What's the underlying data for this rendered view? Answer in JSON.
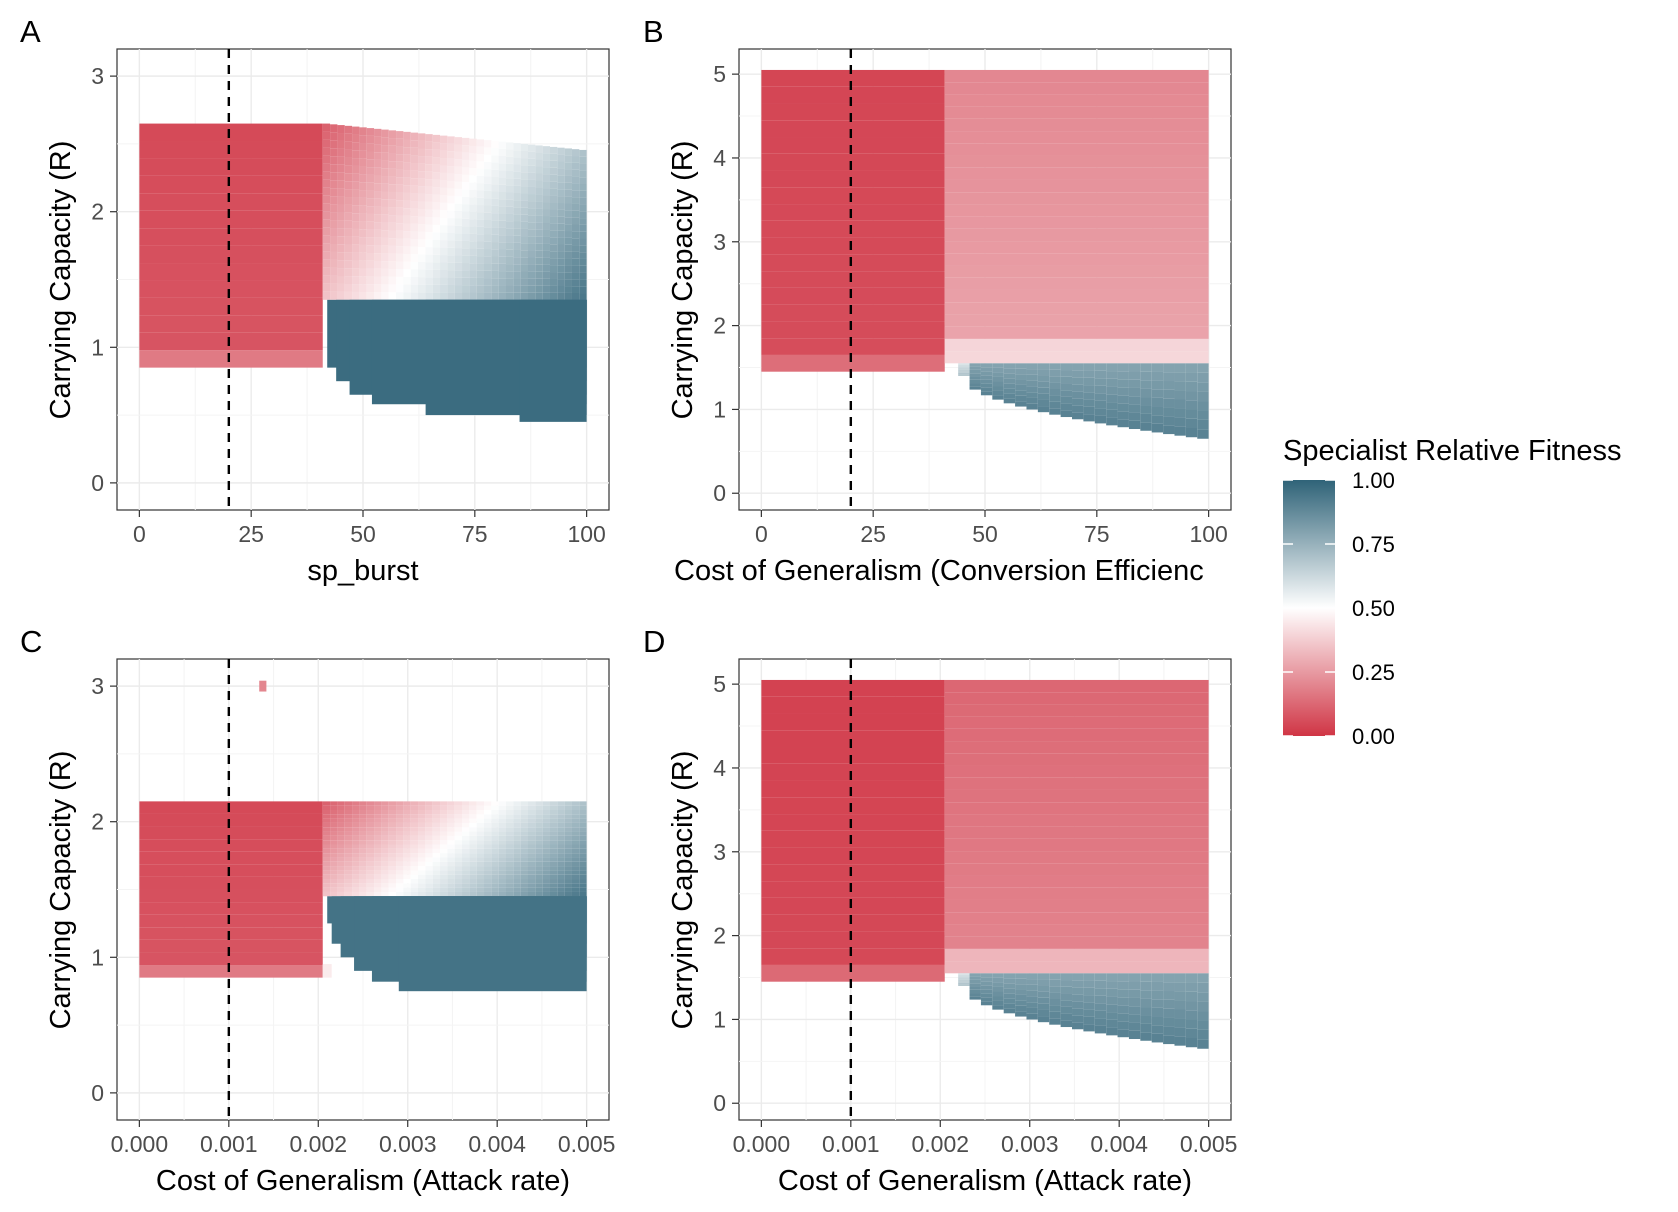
{
  "legend": {
    "title": "Specialist Relative Fitness",
    "ticks": [
      "1.00",
      "0.75",
      "0.50",
      "0.25",
      "0.00"
    ],
    "colors": {
      "high": "#2f6378",
      "mid": "#ffffff",
      "low": "#d03545"
    }
  },
  "chart_data": [
    {
      "type": "heatmap",
      "panel": "A",
      "xlabel": "sp_burst",
      "ylabel": "Carrying Capacity (R)",
      "xlim": [
        -5,
        105
      ],
      "ylim": [
        -0.2,
        3.2
      ],
      "xticks": [
        "0",
        "25",
        "50",
        "75",
        "100"
      ],
      "xtick_values": [
        0,
        25,
        50,
        75,
        100
      ],
      "yticks": [
        "0",
        "1",
        "2",
        "3"
      ],
      "ytick_values": [
        0,
        1,
        2,
        3
      ],
      "reference_line_x": 20,
      "regions": {
        "red_block": {
          "x": [
            0,
            41
          ],
          "y": [
            0.85,
            2.65
          ],
          "fitness": 0.05
        },
        "gradient_block": {
          "x": [
            41,
            100
          ],
          "y_top_start": 2.65,
          "y_top_end": 2.45,
          "y_bottom": 1.35
        },
        "blue_block": {
          "x_start": [
            42,
            44,
            47,
            52,
            64,
            85
          ],
          "y": [
            [
              0.85,
              1.35
            ],
            [
              0.75,
              1.35
            ],
            [
              0.65,
              1.35
            ],
            [
              0.58,
              1.35
            ],
            [
              0.5,
              1.35
            ],
            [
              0.45,
              1.35
            ]
          ],
          "fitness": 0.97
        }
      },
      "grid": true
    },
    {
      "type": "heatmap",
      "panel": "B",
      "xlabel": "Cost of Generalism (Conversion Efficienc",
      "ylabel": "Carrying Capacity (R)",
      "xlim": [
        -5,
        105
      ],
      "ylim": [
        -0.2,
        5.3
      ],
      "xticks": [
        "0",
        "25",
        "50",
        "75",
        "100"
      ],
      "xtick_values": [
        0,
        25,
        50,
        75,
        100
      ],
      "yticks": [
        "0",
        "1",
        "2",
        "3",
        "4",
        "5"
      ],
      "ytick_values": [
        0,
        1,
        2,
        3,
        4,
        5
      ],
      "reference_line_x": 20,
      "regions": {
        "red_block": {
          "x": [
            0,
            41
          ],
          "y": [
            1.45,
            5.05
          ],
          "fitness": 0.04
        },
        "pink_block": {
          "x": [
            41,
            100
          ],
          "y": [
            1.55,
            5.05
          ],
          "fitness": 0.2
        },
        "blue_block": {
          "x": [
            44,
            100
          ],
          "y_bottom_start": 1.4,
          "y_bottom_end": 0.65,
          "y_top": 1.55,
          "fitness": 0.9
        }
      },
      "grid": true
    },
    {
      "type": "heatmap",
      "panel": "C",
      "xlabel": "Cost of Generalism (Attack rate)",
      "ylabel": "Carrying Capacity (R)",
      "xlim": [
        -0.00025,
        0.00525
      ],
      "ylim": [
        -0.2,
        3.2
      ],
      "xticks": [
        "0.000",
        "0.001",
        "0.002",
        "0.003",
        "0.004",
        "0.005"
      ],
      "xtick_values": [
        0,
        0.001,
        0.002,
        0.003,
        0.004,
        0.005
      ],
      "yticks": [
        "0",
        "1",
        "2",
        "3"
      ],
      "ytick_values": [
        0,
        1,
        2,
        3
      ],
      "reference_line_x": 0.001,
      "regions": {
        "red_block": {
          "x": [
            0,
            0.00205
          ],
          "y": [
            0.85,
            2.15
          ],
          "fitness": 0.05
        },
        "gradient_block": {
          "x": [
            0.00205,
            0.005
          ],
          "y_top": 2.15,
          "y_bottom": 1.45
        },
        "blue_block": {
          "x_start": 0.0021,
          "y": [
            0.75,
            1.45
          ],
          "fitness": 0.95
        },
        "outlier": {
          "x": 0.00138,
          "y": 3.0,
          "fitness": 0.2
        }
      },
      "grid": true
    },
    {
      "type": "heatmap",
      "panel": "D",
      "xlabel": "Cost of Generalism (Attack rate)",
      "ylabel": "Carrying Capacity (R)",
      "xlim": [
        -0.00025,
        0.00525
      ],
      "ylim": [
        -0.2,
        5.3
      ],
      "xticks": [
        "0.000",
        "0.001",
        "0.002",
        "0.003",
        "0.004",
        "0.005"
      ],
      "xtick_values": [
        0,
        0.001,
        0.002,
        0.003,
        0.004,
        0.005
      ],
      "yticks": [
        "0",
        "1",
        "2",
        "3",
        "4",
        "5"
      ],
      "ytick_values": [
        0,
        1,
        2,
        3,
        4,
        5
      ],
      "reference_line_x": 0.001,
      "regions": {
        "red_block": {
          "x": [
            0,
            0.00205
          ],
          "y": [
            1.45,
            5.05
          ],
          "fitness": 0.03
        },
        "pink_block": {
          "x": [
            0.00205,
            0.005
          ],
          "y": [
            1.55,
            5.05
          ],
          "fitness": 0.12
        },
        "blue_block": {
          "x": [
            0.0022,
            0.005
          ],
          "y_bottom_start": 1.4,
          "y_bottom_end": 0.65,
          "y_top": 1.55,
          "fitness": 0.9
        }
      },
      "grid": true
    }
  ]
}
